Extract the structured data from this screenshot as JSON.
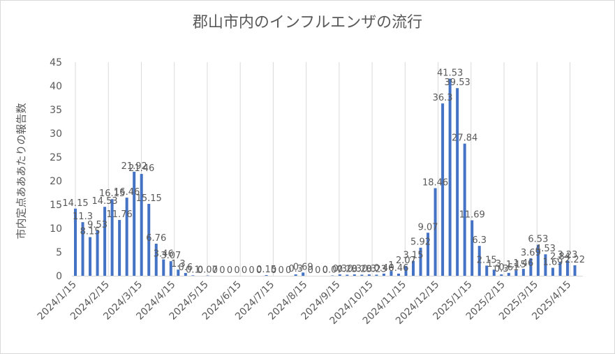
{
  "chart_data": {
    "type": "bar",
    "title": "郡山市内のインフルエンザの流行",
    "xlabel": "",
    "ylabel": "市内定点あああたりの報告数",
    "ylim": [
      0,
      45
    ],
    "yticks": [
      0,
      5,
      10,
      15,
      20,
      25,
      30,
      35,
      40,
      45
    ],
    "xticks": [
      "2024/1/15",
      "2024/2/15",
      "2024/3/15",
      "2024/4/15",
      "2024/5/15",
      "2024/6/15",
      "2024/7/15",
      "2024/8/15",
      "2024/9/15",
      "2024/10/15",
      "2024/11/15",
      "2024/12/15",
      "2025/1/15",
      "2025/2/15",
      "2025/3/15",
      "2025/4/15"
    ],
    "grid": "vertical",
    "legend": "none",
    "color": "#4472c4",
    "values": [
      14.15,
      11.3,
      8.15,
      9.53,
      14.53,
      16.15,
      11.76,
      16.46,
      21.92,
      21.46,
      15.15,
      6.76,
      3.46,
      3.07,
      1.3,
      0.6,
      0.1,
      0,
      0.07,
      0,
      0,
      0,
      0,
      0,
      0,
      0,
      0.15,
      0,
      0,
      0,
      0.3,
      0.69,
      0,
      0,
      0,
      0.07,
      0.3,
      0.23,
      0.3,
      0.23,
      0.3,
      0.23,
      0.46,
      1.0,
      0.46,
      2.07,
      3.15,
      5.92,
      9.07,
      18.46,
      36.3,
      41.53,
      39.53,
      27.84,
      11.69,
      6.3,
      2.15,
      1.3,
      0.3,
      0.61,
      1.15,
      1.46,
      3.69,
      6.53,
      4.53,
      1.69,
      2.84,
      3.23,
      2.22
    ],
    "value_labels": [
      "14.15",
      "11.3",
      "8.15",
      "9.53",
      "14.53",
      "16.15",
      "11.76",
      "16.46",
      "21.92",
      "21.46",
      "15.15",
      "6.76",
      "3.46",
      "3.07",
      "1.3",
      "0.6",
      "0.1",
      "0",
      "0.07",
      "0",
      "0",
      "0",
      "0",
      "0",
      "0",
      "0",
      "0.15",
      "0",
      "0",
      "0",
      "0.3",
      "0.69",
      "0",
      "0",
      "0",
      "0.07",
      "0.3",
      "0.23",
      "0.3",
      "0.23",
      "0.3",
      "0.23",
      "0.46",
      "1",
      "0.46",
      "2.07",
      "3.15",
      "5.92",
      "9.07",
      "18.46",
      "36.3",
      "41.53",
      "39.53",
      "27.84",
      "11.69",
      "6.3",
      "2.15",
      "1.3",
      "0.3",
      "0.61",
      "1.15",
      "1.46",
      "3.69",
      "6.53",
      "4.53",
      "1.69",
      "2.84",
      "3.23",
      "2.22"
    ]
  }
}
